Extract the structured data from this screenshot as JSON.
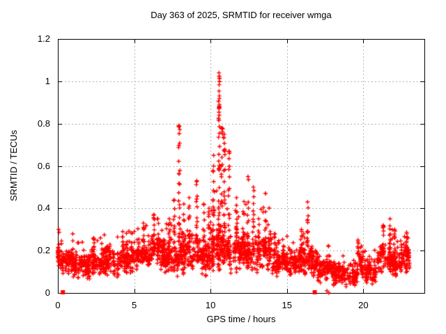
{
  "chart_data": {
    "type": "scatter",
    "title": "Day 363 of 2025, SRMTID for receiver wmga",
    "xlabel": "GPS time / hours",
    "ylabel": "SRMTID / TECUs",
    "xlim": [
      0,
      24
    ],
    "ylim": [
      0,
      1.2
    ],
    "x_end": 23.05,
    "grid": true,
    "legend": false,
    "background": "#ffffff",
    "frame_color": "#000000",
    "grid_color": "#b4b4b4",
    "xticks": [
      {
        "v": 0,
        "label": "0"
      },
      {
        "v": 5,
        "label": "5"
      },
      {
        "v": 10,
        "label": "10"
      },
      {
        "v": 15,
        "label": "15"
      },
      {
        "v": 20,
        "label": "20"
      }
    ],
    "yticks": [
      {
        "v": 0,
        "label": "0"
      },
      {
        "v": 0.2,
        "label": "0.2"
      },
      {
        "v": 0.4,
        "label": "0.4"
      },
      {
        "v": 0.6,
        "label": "0.6"
      },
      {
        "v": 0.8,
        "label": "0.8"
      },
      {
        "v": 1,
        "label": "1"
      },
      {
        "v": 1.2,
        "label": "1.2"
      }
    ],
    "marker": {
      "shape": "plus",
      "color": "#ff0000",
      "size": 6
    },
    "points_per_hour": 112,
    "series": [
      {
        "name": "SRMTID",
        "baseline_bins": [
          [
            0.0,
            0.3,
            0.17,
            0.08
          ],
          [
            0.3,
            1.0,
            0.145,
            0.065
          ],
          [
            1.0,
            2.0,
            0.13,
            0.055
          ],
          [
            2.0,
            3.0,
            0.135,
            0.06
          ],
          [
            3.0,
            4.0,
            0.15,
            0.065
          ],
          [
            4.0,
            5.0,
            0.16,
            0.065
          ],
          [
            5.0,
            6.0,
            0.175,
            0.07
          ],
          [
            6.0,
            7.0,
            0.195,
            0.075
          ],
          [
            7.0,
            8.0,
            0.17,
            0.075
          ],
          [
            8.0,
            9.0,
            0.19,
            0.09
          ],
          [
            9.0,
            10.0,
            0.165,
            0.08
          ],
          [
            10.0,
            11.0,
            0.22,
            0.12
          ],
          [
            11.0,
            12.0,
            0.2,
            0.1
          ],
          [
            12.0,
            13.0,
            0.21,
            0.11
          ],
          [
            13.0,
            14.0,
            0.2,
            0.095
          ],
          [
            14.0,
            15.0,
            0.145,
            0.06
          ],
          [
            15.0,
            16.0,
            0.135,
            0.055
          ],
          [
            16.0,
            17.0,
            0.14,
            0.065
          ],
          [
            17.0,
            18.0,
            0.12,
            0.05
          ],
          [
            18.0,
            19.0,
            0.095,
            0.04
          ],
          [
            19.0,
            19.6,
            0.08,
            0.038
          ],
          [
            19.6,
            20.1,
            0.13,
            0.05
          ],
          [
            20.1,
            20.9,
            0.105,
            0.045
          ],
          [
            20.9,
            22.0,
            0.15,
            0.075
          ],
          [
            22.0,
            22.5,
            0.13,
            0.055
          ],
          [
            22.5,
            23.05,
            0.165,
            0.06
          ]
        ],
        "spikes": [
          [
            0.05,
            0.3
          ],
          [
            2.35,
            0.26
          ],
          [
            4.25,
            0.29
          ],
          [
            5.6,
            0.33
          ],
          [
            6.3,
            0.37
          ],
          [
            6.55,
            0.35
          ],
          [
            7.3,
            0.35
          ],
          [
            7.62,
            0.44
          ],
          [
            7.95,
            0.79
          ],
          [
            8.25,
            0.42
          ],
          [
            8.6,
            0.45
          ],
          [
            9.1,
            0.53
          ],
          [
            9.55,
            0.42
          ],
          [
            9.9,
            0.4
          ],
          [
            10.2,
            0.65
          ],
          [
            10.55,
            1.04
          ],
          [
            10.75,
            0.78
          ],
          [
            10.9,
            0.75
          ],
          [
            11.2,
            0.67
          ],
          [
            11.7,
            0.45
          ],
          [
            12.45,
            0.55
          ],
          [
            12.8,
            0.5
          ],
          [
            13.15,
            0.35
          ],
          [
            13.6,
            0.47
          ],
          [
            14.2,
            0.28
          ],
          [
            15.95,
            0.3
          ],
          [
            16.35,
            0.43
          ],
          [
            19.65,
            0.25
          ],
          [
            21.3,
            0.32
          ],
          [
            21.75,
            0.35
          ],
          [
            22.05,
            0.3
          ],
          [
            22.85,
            0.28
          ]
        ],
        "zero_squares": [
          0.33,
          16.82
        ],
        "near_zero_plus": [
          [
            17.62,
            0.01
          ],
          [
            17.75,
            0.0
          ]
        ]
      }
    ]
  }
}
